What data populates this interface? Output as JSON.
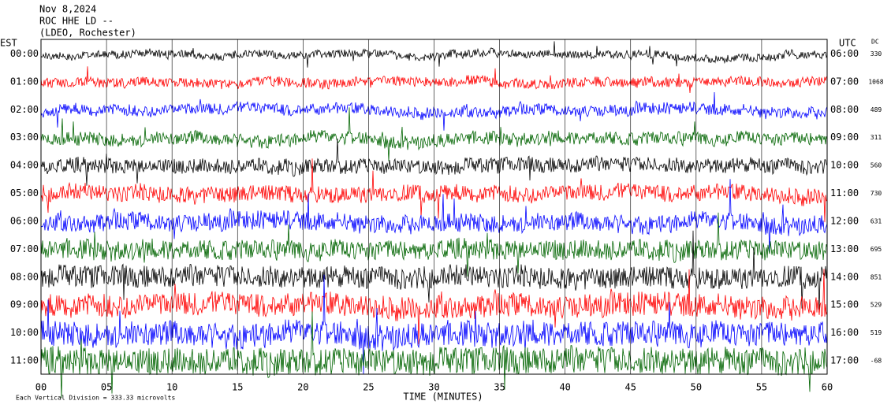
{
  "chart_data": {
    "type": "helicorder",
    "title_lines": [
      "Nov 8,2024",
      "ROC HHE LD --",
      "(LDEO, Rochester)"
    ],
    "left_axis_label": "EST",
    "right_axis_label": "UTC",
    "dc_label": "DC",
    "xlabel": "TIME (MINUTES)",
    "scale_note": "Each Vertical Division = 333.33 microvolts",
    "xlim": [
      0,
      60
    ],
    "xticks": [
      {
        "value": 0,
        "label": "00"
      },
      {
        "value": 5,
        "label": "05"
      },
      10,
      15,
      20,
      25,
      30,
      35,
      40,
      45,
      50,
      55,
      60
    ],
    "grid": true,
    "colors": [
      "#000000",
      "#ff0000",
      "#0000ff",
      "#006400"
    ],
    "rows": {
      "est": [
        "00:00",
        "01:00",
        "02:00",
        "03:00",
        "04:00",
        "05:00",
        "06:00",
        "07:00",
        "08:00",
        "09:00",
        "10:00",
        "11:00"
      ],
      "utc": [
        "06:00",
        "07:00",
        "08:00",
        "09:00",
        "10:00",
        "11:00",
        "12:00",
        "13:00",
        "14:00",
        "15:00",
        "16:00",
        "17:00"
      ],
      "dc": [
        "330",
        "1068",
        "489",
        "311",
        "560",
        "730",
        "631",
        "695",
        "851",
        "529",
        "519",
        "-68"
      ]
    }
  }
}
